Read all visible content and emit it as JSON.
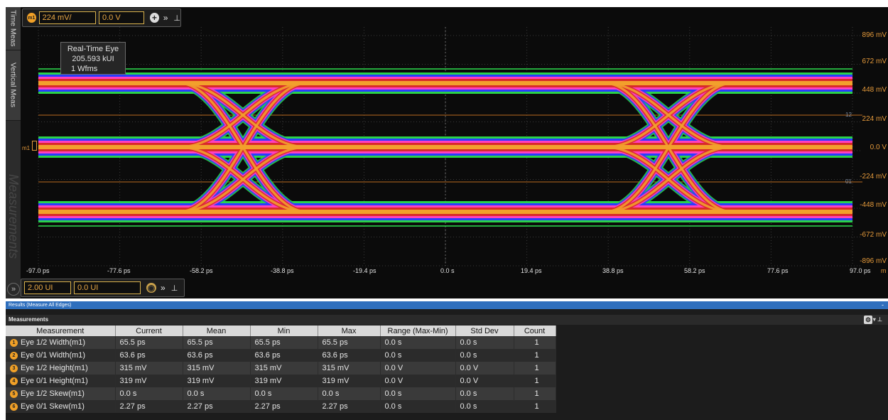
{
  "side_tabs": [
    "Time Meas",
    "Vertical Meas",
    "Measurements"
  ],
  "vertical_toolbar": {
    "badge": "m1",
    "scale": "224 mV/",
    "offset": "0.0 V"
  },
  "horizontal_toolbar": {
    "scale": "2.00 UI",
    "offset": "0.0 UI"
  },
  "tooltip": {
    "title": "Real-Time Eye",
    "ui_count": "205.593 kUI",
    "wfms": "1 Wfms"
  },
  "marker_label": "m1",
  "y_axis_labels": [
    "896 mV",
    "672 mV",
    "448 mV",
    "224 mV",
    "0.0 V",
    "-224 mV",
    "-448 mV",
    "-672 mV",
    "-896 mV"
  ],
  "x_axis_labels": [
    "-97.0 ps",
    "-77.6 ps",
    "-58.2 ps",
    "-38.8 ps",
    "-19.4 ps",
    "0.0 s",
    "19.4 ps",
    "38.8 ps",
    "58.2 ps",
    "77.6 ps",
    "97.0 ps"
  ],
  "x_axis_unit_tail": "m",
  "threshold_tags": [
    "12",
    "01"
  ],
  "results_bar": {
    "title": "Results  (Measure All Edges)",
    "minimize": "-"
  },
  "measurements_header": "Measurements",
  "table": {
    "columns": [
      "Measurement",
      "Current",
      "Mean",
      "Min",
      "Max",
      "Range (Max-Min)",
      "Std Dev",
      "Count"
    ],
    "rows": [
      {
        "num": "1",
        "cells": [
          "Eye 1/2 Width(m1)",
          "65.5 ps",
          "65.5 ps",
          "65.5 ps",
          "65.5 ps",
          "0.0 s",
          "0.0 s",
          "1"
        ]
      },
      {
        "num": "2",
        "cells": [
          "Eye 0/1 Width(m1)",
          "63.6 ps",
          "63.6 ps",
          "63.6 ps",
          "63.6 ps",
          "0.0 s",
          "0.0 s",
          "1"
        ]
      },
      {
        "num": "3",
        "cells": [
          "Eye 1/2 Height(m1)",
          "315 mV",
          "315 mV",
          "315 mV",
          "315 mV",
          "0.0 V",
          "0.0 V",
          "1"
        ]
      },
      {
        "num": "4",
        "cells": [
          "Eye 0/1 Height(m1)",
          "319 mV",
          "319 mV",
          "319 mV",
          "319 mV",
          "0.0 V",
          "0.0 V",
          "1"
        ]
      },
      {
        "num": "5",
        "cells": [
          "Eye 1/2 Skew(m1)",
          "0.0 s",
          "0.0 s",
          "0.0 s",
          "0.0 s",
          "0.0 s",
          "0.0 s",
          "1"
        ]
      },
      {
        "num": "6",
        "cells": [
          "Eye 0/1 Skew(m1)",
          "2.27 ps",
          "2.27 ps",
          "2.27 ps",
          "2.27 ps",
          "0.0 s",
          "0.0 s",
          "1"
        ]
      }
    ]
  },
  "colors": {
    "trace_core": "#f2a02c",
    "trace_hot": "#d92a2a",
    "trace_mid": "#ff3fbf",
    "trace_cool": "#2a3cff",
    "trace_edge": "#2ad24a",
    "axis_label": "#e59a3b",
    "results_bar": "#2f6fbd"
  }
}
